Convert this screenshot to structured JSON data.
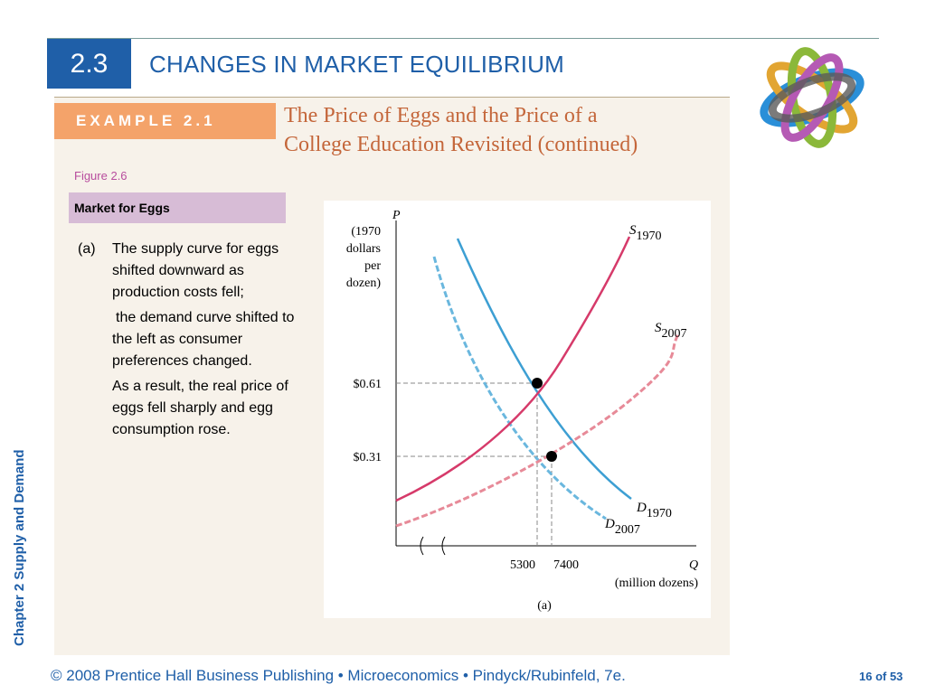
{
  "slide": {
    "section_number": "2.3",
    "title": "CHANGES IN MARKET EQUILIBRIUM",
    "side_label": "Chapter 2  Supply and Demand"
  },
  "example": {
    "label": "EXAMPLE 2.1",
    "title_line1": "The Price of Eggs and the Price of a",
    "title_line2": "College Education Revisited (continued)"
  },
  "figure": {
    "label": "Figure 2.6",
    "caption": "Market for Eggs",
    "tag": "(a)",
    "paragraph1": "The supply curve for eggs shifted downward as production costs fell;",
    "paragraph2": "the demand curve shifted to the left as consumer preferences changed.",
    "paragraph3": "As a result, the real price of eggs fell sharply and egg consumption rose."
  },
  "chart_data": {
    "type": "line",
    "y_axis_symbol": "P",
    "y_axis_unit_lines": [
      "(1970",
      "dollars",
      "per",
      "dozen)"
    ],
    "x_axis_symbol": "Q",
    "x_axis_unit": "(million dozens)",
    "panel_label": "(a)",
    "price_ticks": [
      "$0.61",
      "$0.31"
    ],
    "quantity_ticks": [
      "5300",
      "7400"
    ],
    "equilibria": [
      {
        "price": 0.61,
        "quantity": 5300,
        "year": "1970"
      },
      {
        "price": 0.31,
        "quantity": 7400,
        "year": "2007"
      }
    ],
    "series": [
      {
        "name": "S1970",
        "label_main": "S",
        "label_sub": "1970",
        "kind": "supply",
        "style": "solid",
        "color": "#d63a6a"
      },
      {
        "name": "S2007",
        "label_main": "S",
        "label_sub": "2007",
        "kind": "supply",
        "style": "dashed",
        "color": "#e78a98"
      },
      {
        "name": "D1970",
        "label_main": "D",
        "label_sub": "1970",
        "kind": "demand",
        "style": "solid",
        "color": "#3d9fd3"
      },
      {
        "name": "D2007",
        "label_main": "D",
        "label_sub": "2007",
        "kind": "demand",
        "style": "dashed",
        "color": "#6ab7de"
      }
    ]
  },
  "footer": {
    "text": "© 2008 Prentice Hall Business Publishing  •  Microeconomics  •  Pindyck/Rubinfeld, 7e.",
    "page": "16 of 53"
  },
  "colors": {
    "brand_blue": "#1f5fa8",
    "example_orange": "#f4a36a",
    "example_title": "#c4663a",
    "figure_pink": "#b84d9e",
    "caption_bg": "#d7bcd6",
    "panel_bg": "#f7f2ea"
  }
}
